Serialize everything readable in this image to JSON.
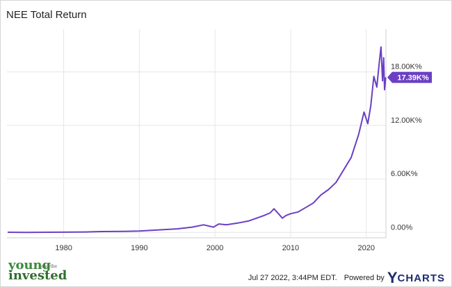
{
  "title": "NEE Total Return",
  "footer": {
    "timestamp": "Jul 27 2022, 3:44PM EDT.",
    "powered_by": "Powered by",
    "brand_y": "Y",
    "brand_rest": "CHARTS"
  },
  "logo": {
    "line1": "young",
    "line2": "and the",
    "line3": "invested"
  },
  "colors": {
    "line": "#6a3fc4",
    "badge": "#6a3fc4",
    "grid": "#e6e6e6"
  },
  "chart_data": {
    "type": "line",
    "title": "NEE Total Return",
    "xlabel": "",
    "ylabel": "",
    "xlim": [
      1972.5,
      2022.6
    ],
    "ylim": [
      -0.6,
      22.8
    ],
    "x_ticks": [
      1980,
      1990,
      2000,
      2010,
      2020
    ],
    "x_tick_labels": [
      "1980",
      "1990",
      "2000",
      "2010",
      "2020"
    ],
    "y_ticks": [
      0,
      6,
      12,
      18
    ],
    "y_tick_labels": [
      "0.00%",
      "6.00K%",
      "12.00K%",
      "18.00K%"
    ],
    "y_unit": "K%",
    "grid": true,
    "last_value_label": "17.39K%",
    "last_value": 17.39,
    "series": [
      {
        "points": [
          [
            1972.6,
            0.02
          ],
          [
            1975,
            0.0
          ],
          [
            1978,
            0.02
          ],
          [
            1980,
            0.03
          ],
          [
            1983,
            0.05
          ],
          [
            1985,
            0.1
          ],
          [
            1988,
            0.12
          ],
          [
            1990,
            0.16
          ],
          [
            1993,
            0.3
          ],
          [
            1995,
            0.4
          ],
          [
            1997,
            0.6
          ],
          [
            1998.5,
            0.85
          ],
          [
            1999.8,
            0.6
          ],
          [
            2000.5,
            0.95
          ],
          [
            2001.5,
            0.85
          ],
          [
            2003,
            1.05
          ],
          [
            2004.5,
            1.3
          ],
          [
            2005.5,
            1.6
          ],
          [
            2006.5,
            1.9
          ],
          [
            2007.3,
            2.2
          ],
          [
            2007.8,
            2.65
          ],
          [
            2008.4,
            2.1
          ],
          [
            2008.9,
            1.6
          ],
          [
            2009.4,
            1.9
          ],
          [
            2010,
            2.1
          ],
          [
            2011,
            2.3
          ],
          [
            2012,
            2.8
          ],
          [
            2013,
            3.3
          ],
          [
            2014,
            4.2
          ],
          [
            2015,
            4.8
          ],
          [
            2016,
            5.6
          ],
          [
            2017,
            7.0
          ],
          [
            2018,
            8.4
          ],
          [
            2019,
            11.0
          ],
          [
            2019.7,
            13.5
          ],
          [
            2020.2,
            12.2
          ],
          [
            2020.6,
            14.2
          ],
          [
            2021.0,
            17.5
          ],
          [
            2021.4,
            16.3
          ],
          [
            2021.7,
            18.9
          ],
          [
            2021.95,
            20.8
          ],
          [
            2022.15,
            17.0
          ],
          [
            2022.3,
            19.6
          ],
          [
            2022.42,
            16.0
          ],
          [
            2022.57,
            17.39
          ]
        ]
      }
    ]
  }
}
